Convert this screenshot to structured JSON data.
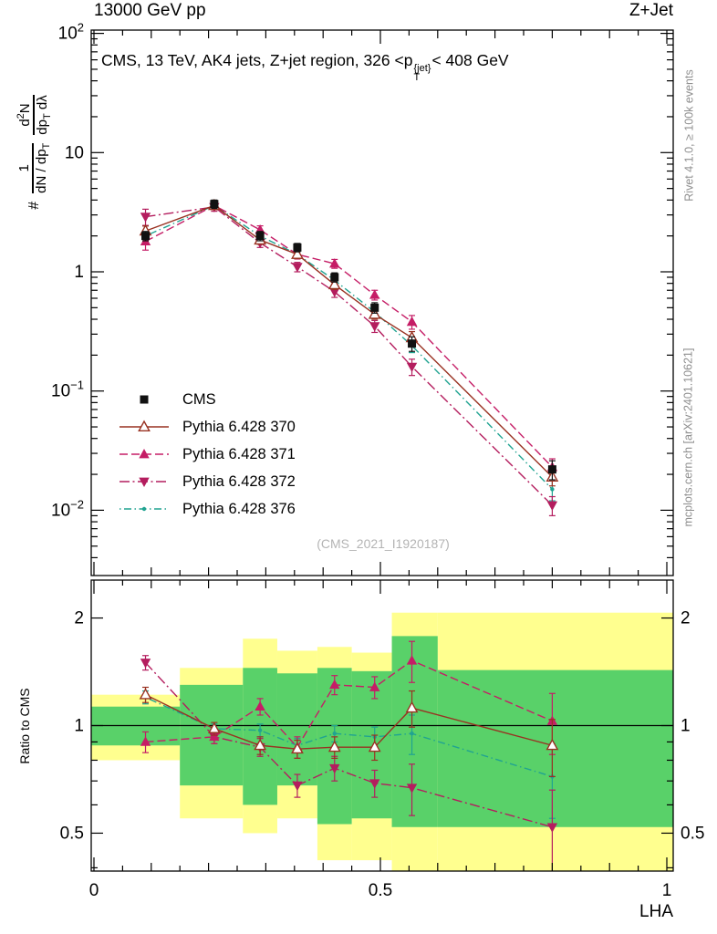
{
  "header": {
    "left": "13000 GeV pp",
    "right": "Z+Jet"
  },
  "title": {
    "part1": "CMS, 13 TeV, AK4 jets, Z+jet region, 326 <p",
    "sup": "{jet}",
    "sub": "T",
    "part2": "< 408 GeV"
  },
  "ylabel": {
    "hash": "#",
    "f1_num": "1",
    "f1_den": "dN / dp",
    "f1_den_sub": "T",
    "f2_num_a": "d",
    "f2_num_sup": "2",
    "f2_num_b": "N",
    "f2_den_a": "dp",
    "f2_den_sub": "T",
    "f2_den_b": " dλ"
  },
  "ratio_ylabel": "Ratio to CMS",
  "xlabel": "LHA",
  "watermark": "(CMS_2021_I1920187)",
  "side_notes": {
    "top_right": "Rivet 4.1.0, ≥ 100k events",
    "bottom_right": "mcplots.cern.ch [arXiv:2401.10621]"
  },
  "chart_data": {
    "type": "line",
    "title": "CMS, 13 TeV, AK4 jets, Z+jet region, 326 <pT{jet}< 408 GeV",
    "xlabel": "LHA",
    "ylabel": "# 1/(dN/dpT) d2N/(dpT dλ)",
    "ratio_label": "Ratio to CMS",
    "xlim": [
      0,
      1
    ],
    "ylim_main": [
      0.003,
      110
    ],
    "ylim_ratio": [
      0.39,
      2.55
    ],
    "y_scale": "log",
    "x": [
      0.09,
      0.21,
      0.29,
      0.355,
      0.42,
      0.49,
      0.555,
      0.8
    ],
    "x_ticks": [
      {
        "v": 0,
        "label": "0"
      },
      {
        "v": 0.5,
        "label": "0.5"
      },
      {
        "v": 1,
        "label": "1"
      }
    ],
    "y_ticks_main": [
      {
        "v": 100,
        "base": "10",
        "exp": "2"
      },
      {
        "v": 10,
        "base": "10",
        "exp": ""
      },
      {
        "v": 1,
        "base": "1",
        "exp": ""
      },
      {
        "v": 0.1,
        "base": "10",
        "exp": "−1"
      },
      {
        "v": 0.01,
        "base": "10",
        "exp": "−2"
      }
    ],
    "y_ticks_ratio": [
      {
        "v": 0.5,
        "label": "0.5"
      },
      {
        "v": 1,
        "label": "1"
      },
      {
        "v": 2,
        "label": "2"
      }
    ],
    "series": [
      {
        "name": "CMS",
        "color": "#111111",
        "marker": "square",
        "line": "none",
        "y": [
          2.0,
          3.7,
          2.0,
          1.6,
          0.9,
          0.5,
          0.25,
          0.022
        ],
        "yerr": [
          0.18,
          0.3,
          0.18,
          0.13,
          0.08,
          0.05,
          0.035,
          0.004
        ]
      },
      {
        "name": "Pythia 6.428 370",
        "color": "#993222",
        "marker": "triangle-open",
        "line": "solid",
        "y": [
          2.2,
          3.6,
          1.85,
          1.4,
          0.78,
          0.44,
          0.28,
          0.019
        ],
        "yerr": [
          0.22,
          0.28,
          0.15,
          0.11,
          0.07,
          0.04,
          0.035,
          0.003
        ],
        "ratio": [
          1.22,
          0.98,
          0.88,
          0.86,
          0.87,
          0.87,
          1.12,
          0.88
        ],
        "ratio_err": [
          0.06,
          0.04,
          0.05,
          0.05,
          0.06,
          0.07,
          0.13,
          0.16
        ]
      },
      {
        "name": "Pythia 6.428 371",
        "color": "#c51d66",
        "marker": "triangle",
        "line": "dashed",
        "y": [
          1.8,
          3.6,
          2.25,
          1.4,
          1.17,
          0.64,
          0.38,
          0.023
        ],
        "yerr": [
          0.28,
          0.28,
          0.18,
          0.12,
          0.1,
          0.06,
          0.05,
          0.004
        ],
        "ratio": [
          0.9,
          0.93,
          1.13,
          0.87,
          1.3,
          1.28,
          1.52,
          1.03
        ],
        "ratio_err": [
          0.06,
          0.04,
          0.06,
          0.06,
          0.08,
          0.09,
          0.2,
          0.2
        ]
      },
      {
        "name": "Pythia 6.428 372",
        "color": "#b41d5e",
        "marker": "triangle-down",
        "line": "dashdot",
        "y": [
          2.9,
          3.5,
          1.75,
          1.1,
          0.68,
          0.35,
          0.16,
          0.011
        ],
        "yerr": [
          0.45,
          0.28,
          0.15,
          0.1,
          0.07,
          0.04,
          0.025,
          0.002
        ],
        "ratio": [
          1.5,
          0.93,
          0.87,
          0.68,
          0.76,
          0.69,
          0.67,
          0.52
        ],
        "ratio_err": [
          0.07,
          0.04,
          0.05,
          0.05,
          0.06,
          0.06,
          0.11,
          0.14
        ]
      },
      {
        "name": "Pythia 6.428 376",
        "color": "#20a391",
        "marker": "dot",
        "line": "dashdotdot",
        "y": [
          2.0,
          3.6,
          2.0,
          1.4,
          0.85,
          0.46,
          0.24,
          0.015
        ],
        "yerr": [
          0.22,
          0.28,
          0.16,
          0.11,
          0.08,
          0.04,
          0.03,
          0.003
        ],
        "ratio": [
          1.2,
          0.98,
          0.97,
          0.88,
          0.95,
          0.93,
          0.95,
          0.72
        ],
        "ratio_err": [
          0.05,
          0.03,
          0.04,
          0.04,
          0.05,
          0.06,
          0.12,
          0.17
        ]
      }
    ],
    "bands": {
      "edges": [
        0,
        0.15,
        0.26,
        0.32,
        0.39,
        0.45,
        0.52,
        0.6,
        1.0
      ],
      "yellow": [
        [
          0.8,
          1.22
        ],
        [
          0.55,
          1.45
        ],
        [
          0.5,
          1.75
        ],
        [
          0.55,
          1.62
        ],
        [
          0.42,
          1.66
        ],
        [
          0.42,
          1.6
        ],
        [
          0.38,
          2.07
        ],
        [
          0.38,
          2.07
        ]
      ],
      "green": [
        [
          0.88,
          1.13
        ],
        [
          0.68,
          1.3
        ],
        [
          0.6,
          1.45
        ],
        [
          0.68,
          1.4
        ],
        [
          0.53,
          1.45
        ],
        [
          0.55,
          1.42
        ],
        [
          0.52,
          1.78
        ],
        [
          0.52,
          1.43
        ]
      ],
      "yellow_color": "#ffff8f",
      "green_color": "#59d169"
    }
  }
}
